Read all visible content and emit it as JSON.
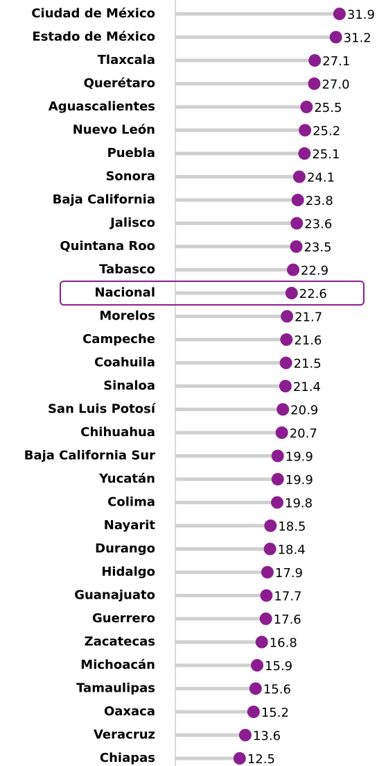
{
  "chart_data": {
    "type": "lollipop",
    "categories": [
      "Ciudad de México",
      "Estado de México",
      "Tlaxcala",
      "Querétaro",
      "Aguascalientes",
      "Nuevo León",
      "Puebla",
      "Sonora",
      "Baja California",
      "Jalisco",
      "Quintana Roo",
      "Tabasco",
      "Nacional",
      "Morelos",
      "Campeche",
      "Coahuila",
      "Sinaloa",
      "San Luis Potosí",
      "Chihuahua",
      "Baja California Sur",
      "Yucatán",
      "Colima",
      "Nayarit",
      "Durango",
      "Hidalgo",
      "Guanajuato",
      "Guerrero",
      "Zacatecas",
      "Michoacán",
      "Tamaulipas",
      "Oaxaca",
      "Veracruz",
      "Chiapas"
    ],
    "values": [
      31.9,
      31.2,
      27.1,
      27.0,
      25.5,
      25.2,
      25.1,
      24.1,
      23.8,
      23.6,
      23.5,
      22.9,
      22.6,
      21.7,
      21.6,
      21.5,
      21.4,
      20.9,
      20.7,
      19.9,
      19.9,
      19.8,
      18.5,
      18.4,
      17.9,
      17.7,
      17.6,
      16.8,
      15.9,
      15.6,
      15.2,
      13.6,
      12.5
    ],
    "value_labels": [
      "31.9",
      "31.2",
      "27.1",
      "27.0",
      "25.5",
      "25.2",
      "25.1",
      "24.1",
      "23.8",
      "23.6",
      "23.5",
      "22.9",
      "22.6",
      "21.7",
      "21.6",
      "21.5",
      "21.4",
      "20.9",
      "20.7",
      "19.9",
      "19.9",
      "19.8",
      "18.5",
      "18.4",
      "17.9",
      "17.7",
      "17.6",
      "16.8",
      "15.9",
      "15.6",
      "15.2",
      "13.6",
      "12.5"
    ],
    "xlim": [
      0,
      40
    ],
    "color": "#8b1e8f",
    "stem_color": "#d0d0d0",
    "highlight": "Nacional"
  }
}
